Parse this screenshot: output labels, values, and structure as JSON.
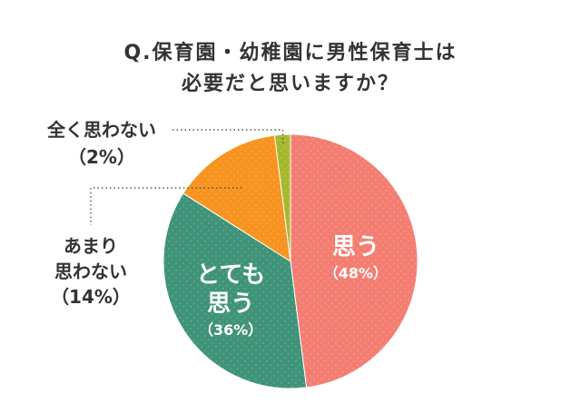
{
  "title_lines": [
    "Q.保育園・幼稚園に男性保育士は",
    "必要だと思いますか？"
  ],
  "chart_data": {
    "type": "pie",
    "title": "Q.保育園・幼稚園に男性保育士は必要だと思いますか？",
    "slices": [
      {
        "label_lines": [
          "思う"
        ],
        "value": 48,
        "value_label": "（48%）",
        "color": "#f47d72",
        "label_placement": "inside",
        "label_color": "#ffffff"
      },
      {
        "label_lines": [
          "とても",
          "思う"
        ],
        "value": 36,
        "value_label": "（36%）",
        "color": "#3e9378",
        "label_placement": "inside",
        "label_color": "#ffffff"
      },
      {
        "label_lines": [
          "あまり",
          "思わない"
        ],
        "value": 14,
        "value_label": "（14%）",
        "color": "#f7931e",
        "label_placement": "outside-left",
        "label_color": "#333333"
      },
      {
        "label_lines": [
          "全く思わない"
        ],
        "value": 2,
        "value_label": "（2%）",
        "color": "#a5b82c",
        "label_placement": "outside-top",
        "label_color": "#333333"
      }
    ],
    "start_angle": "12 o'clock",
    "direction": "clockwise",
    "legend": "none",
    "slice_pattern": "dots"
  }
}
